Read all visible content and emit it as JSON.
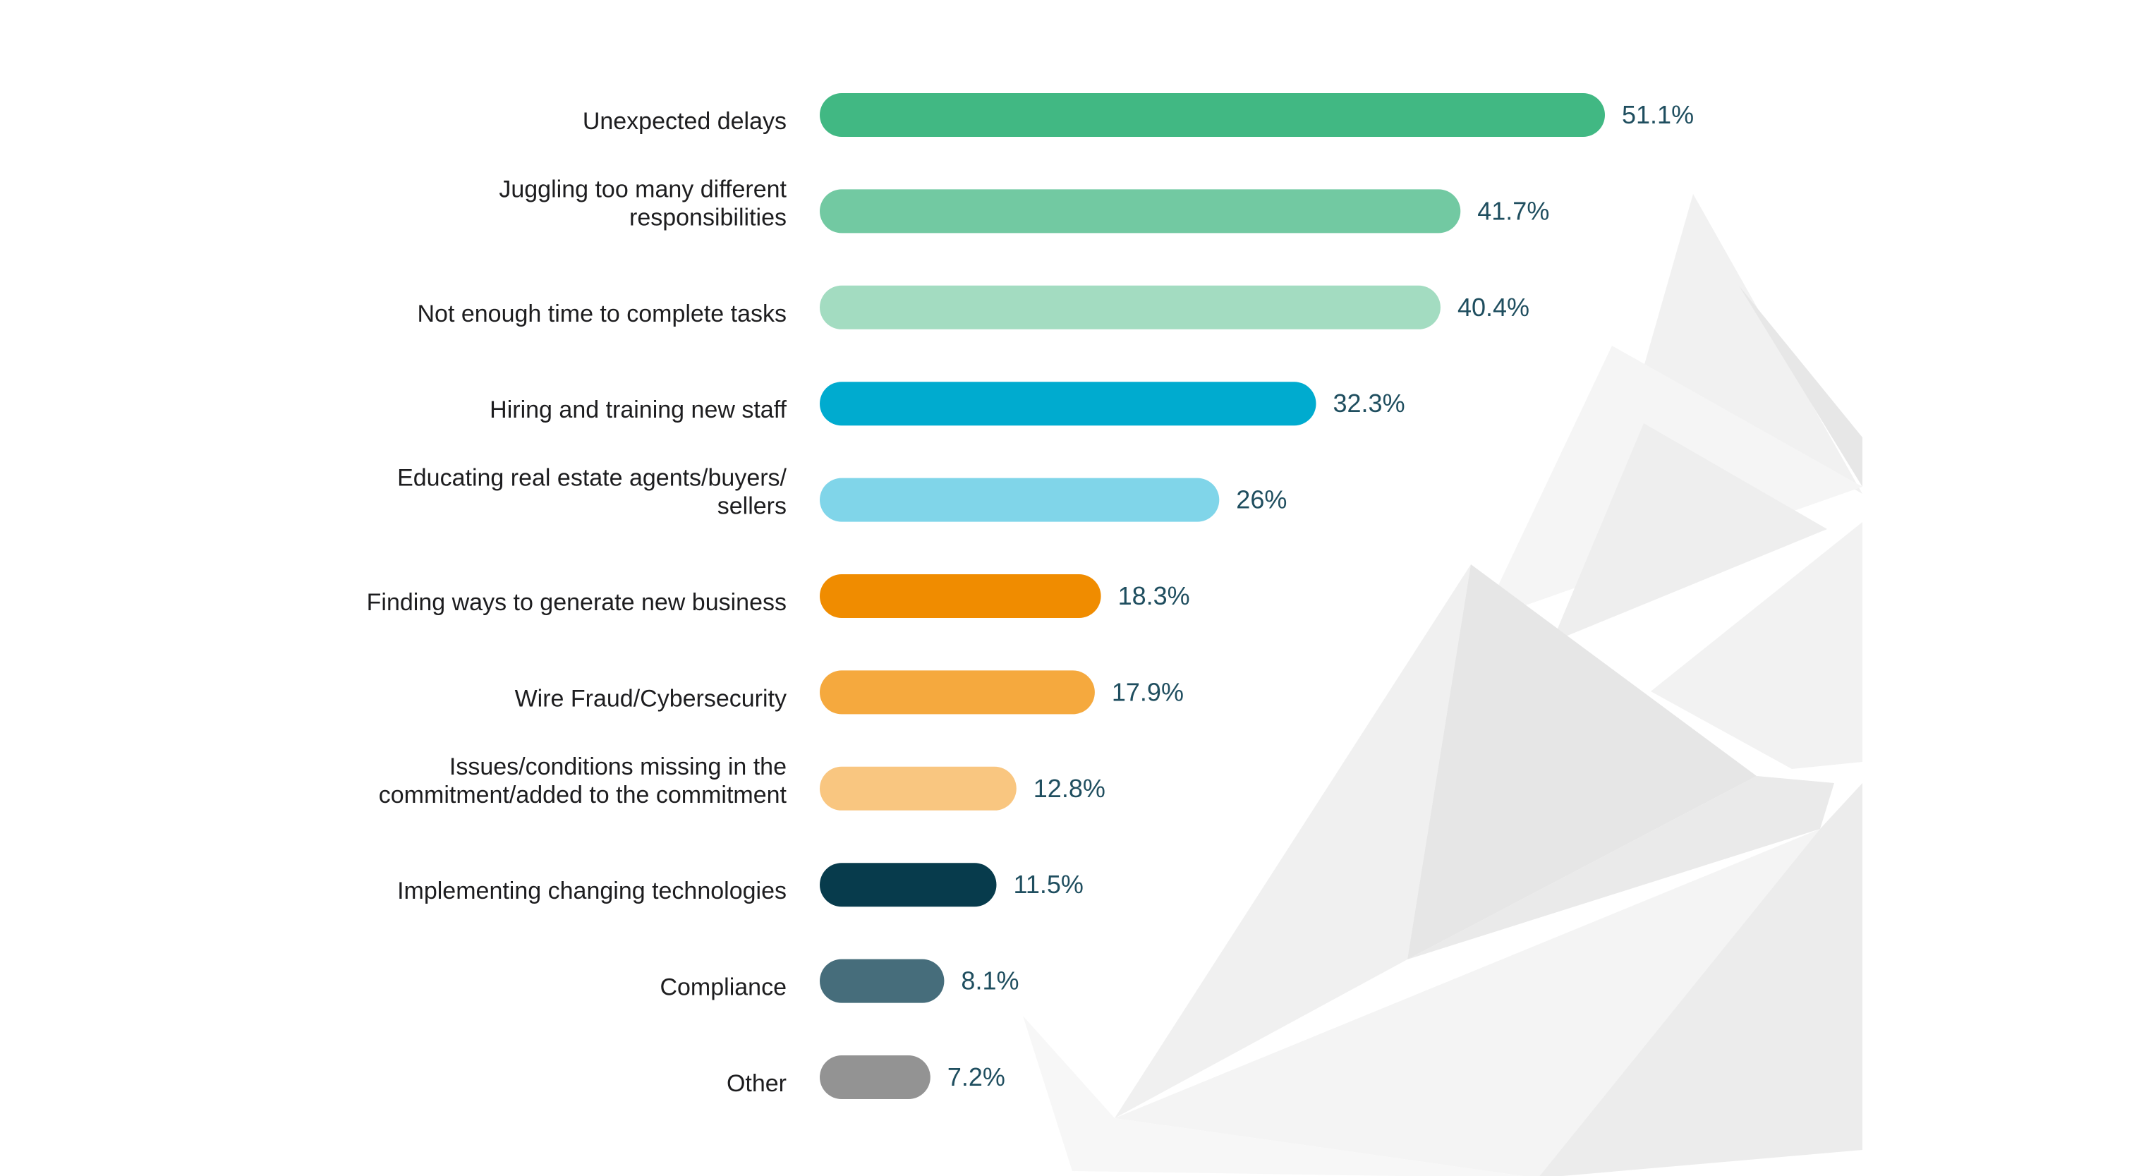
{
  "chart_data": {
    "type": "bar",
    "orientation": "horizontal",
    "title": "",
    "xlabel": "",
    "ylabel": "",
    "xlim": [
      0,
      51.1
    ],
    "grid": false,
    "legend": "none",
    "categories": [
      [
        "Unexpected delays"
      ],
      [
        "Juggling too many different",
        "responsibilities"
      ],
      [
        "Not enough time to complete tasks"
      ],
      [
        "Hiring and training new staff"
      ],
      [
        "Educating real estate agents/buyers/",
        "sellers"
      ],
      [
        "Finding ways to generate new business"
      ],
      [
        "Wire Fraud/Cybersecurity"
      ],
      [
        "Issues/conditions missing in the",
        "commitment/added to the commitment"
      ],
      [
        "Implementing changing technologies"
      ],
      [
        "Compliance"
      ],
      [
        "Other"
      ]
    ],
    "values": [
      51.1,
      41.7,
      40.4,
      32.3,
      26,
      18.3,
      17.9,
      12.8,
      11.5,
      8.1,
      7.2
    ],
    "value_labels": [
      "51.1%",
      "41.7%",
      "40.4%",
      "32.3%",
      "26%",
      "18.3%",
      "17.9%",
      "12.8%",
      "11.5%",
      "8.1%",
      "7.2%"
    ],
    "colors": [
      "#41b883",
      "#72c9a2",
      "#a3dcc1",
      "#00abcf",
      "#80d5e9",
      "#f08c00",
      "#f5a93e",
      "#f9c680",
      "#073b4c",
      "#466d7b",
      "#939393"
    ]
  },
  "theme": {
    "label_color": "#1d1d1f",
    "value_color": "#1f4e5f",
    "background": "#ffffff",
    "decoration": "grey-geometric-mountain"
  }
}
